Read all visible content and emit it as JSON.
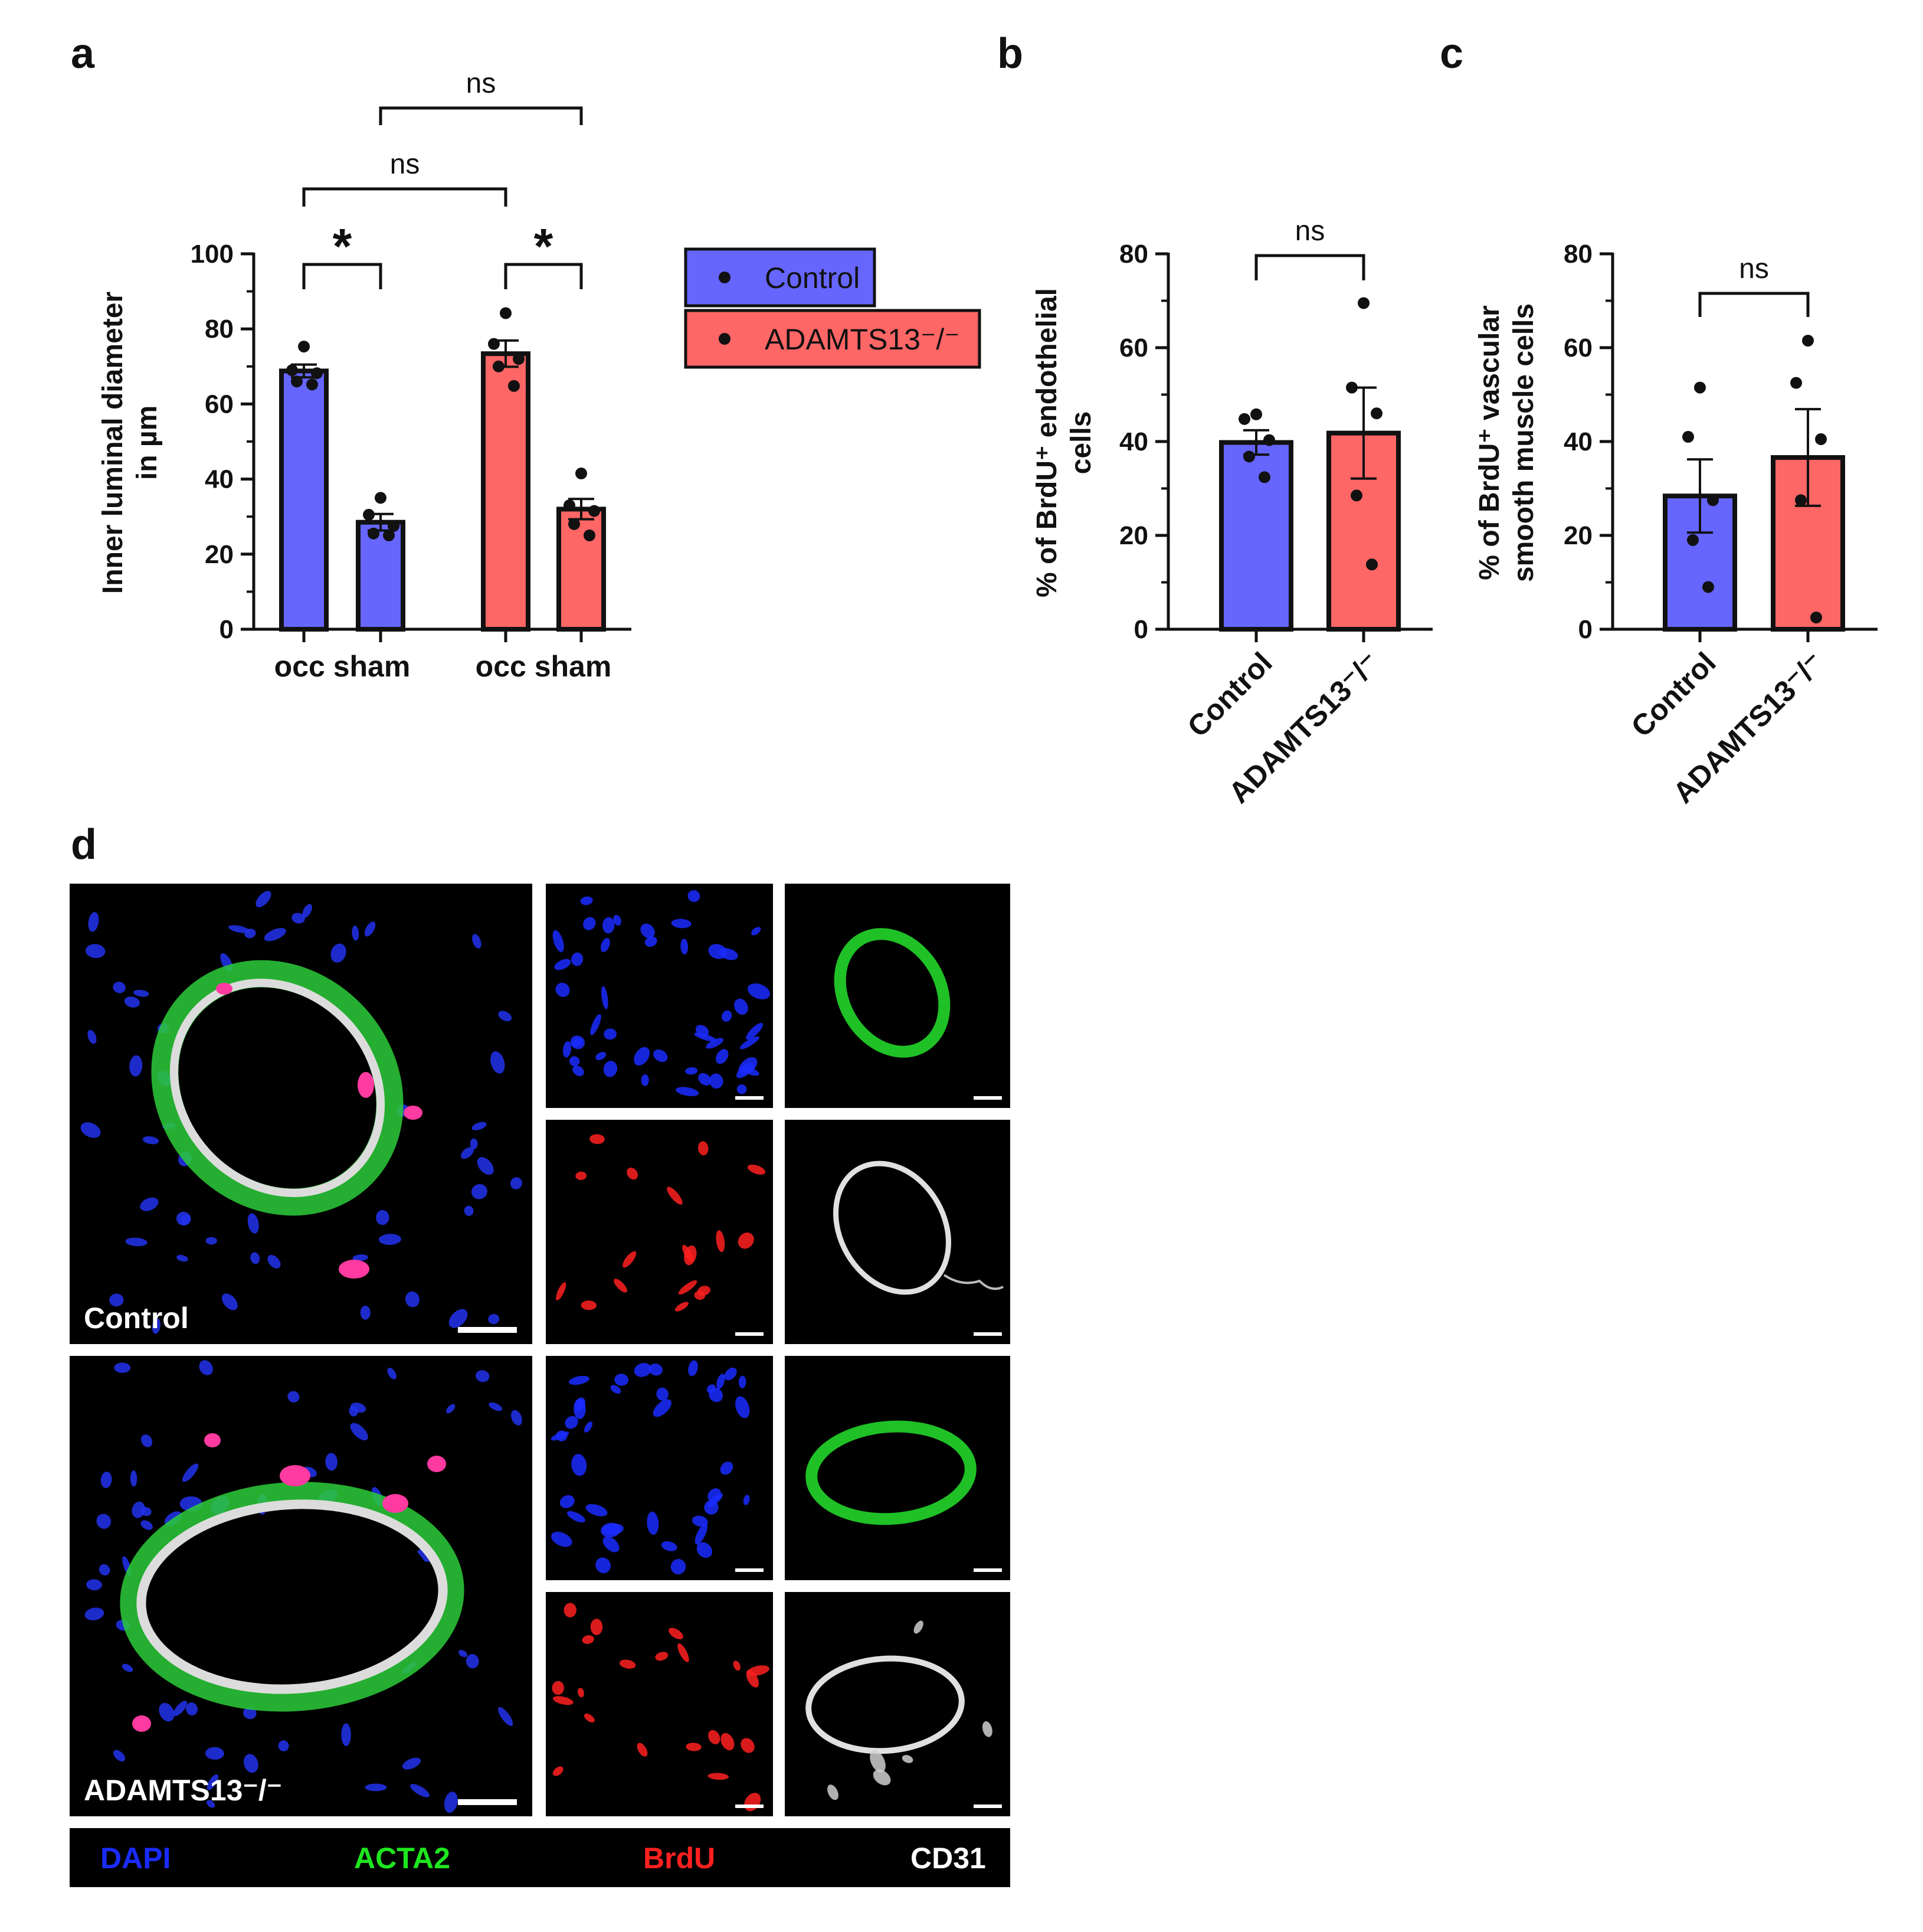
{
  "panel_labels": {
    "a": "a",
    "b": "b",
    "c": "c",
    "d": "d"
  },
  "colors": {
    "control": "#6666ff",
    "adamts": "#ff6666",
    "axis": "#111111"
  },
  "legend": {
    "entries": [
      {
        "label": "Control",
        "color": "#6666ff"
      },
      {
        "label": "ADAMTS13⁻/⁻",
        "color": "#ff6666"
      }
    ]
  },
  "chart_data": [
    {
      "id": "a",
      "type": "bar",
      "ylabel_lines": [
        "Inner luminal diameter",
        "in µm"
      ],
      "ylim": [
        0,
        100
      ],
      "yticks": [
        "0",
        "20",
        "40",
        "60",
        "80",
        "100"
      ],
      "group_labels": [
        "occ sham",
        "occ sham"
      ],
      "bars": [
        {
          "name": "Control occ",
          "color": "#6666ff",
          "value": 68.8,
          "sem": 1.7,
          "points": [
            75.3,
            69.0,
            68.2,
            66.0,
            65.2
          ]
        },
        {
          "name": "Control sham",
          "color": "#6666ff",
          "value": 28.5,
          "sem": 2.2,
          "points": [
            35.0,
            30.5,
            27.5,
            25.5,
            25.0
          ]
        },
        {
          "name": "ADAMTS13 occ",
          "color": "#ff6666",
          "value": 73.4,
          "sem": 3.5,
          "points": [
            84.2,
            76.0,
            72.0,
            70.0,
            64.8
          ]
        },
        {
          "name": "ADAMTS13 sham",
          "color": "#ff6666",
          "value": 32.0,
          "sem": 2.7,
          "points": [
            41.5,
            33.0,
            31.5,
            28.0,
            25.0
          ]
        }
      ],
      "comparisons": [
        {
          "from": 0,
          "to": 1,
          "label": "*"
        },
        {
          "from": 2,
          "to": 3,
          "label": "*"
        },
        {
          "from": 0,
          "to": 2,
          "label": "ns"
        },
        {
          "from": 1,
          "to": 3,
          "label": "ns"
        }
      ]
    },
    {
      "id": "b",
      "type": "bar",
      "ylabel_lines": [
        "% of BrdU⁺ endothelial",
        "cells"
      ],
      "ylim": [
        0,
        80
      ],
      "yticks": [
        "0",
        "20",
        "40",
        "60",
        "80"
      ],
      "categories": [
        "Control",
        "ADAMTS13⁻/⁻"
      ],
      "bars": [
        {
          "name": "Control",
          "color": "#6666ff",
          "value": 39.8,
          "sem": 2.6,
          "points": [
            45.8,
            44.8,
            40.3,
            36.8,
            32.4
          ]
        },
        {
          "name": "ADAMTS13⁻/⁻",
          "color": "#ff6666",
          "value": 41.8,
          "sem": 9.7,
          "points": [
            69.5,
            51.5,
            46.0,
            28.5,
            13.8
          ]
        }
      ],
      "comparisons": [
        {
          "from": 0,
          "to": 1,
          "label": "ns"
        }
      ]
    },
    {
      "id": "c",
      "type": "bar",
      "ylabel_lines": [
        "% of BrdU⁺ vascular",
        "smooth muscle cells"
      ],
      "ylim": [
        0,
        80
      ],
      "yticks": [
        "0",
        "20",
        "40",
        "60",
        "80"
      ],
      "categories": [
        "Control",
        "ADAMTS13⁻/⁻"
      ],
      "bars": [
        {
          "name": "Control",
          "color": "#6666ff",
          "value": 28.4,
          "sem": 7.8,
          "points": [
            51.5,
            41.0,
            27.5,
            19.0,
            9.0
          ]
        },
        {
          "name": "ADAMTS13⁻/⁻",
          "color": "#ff6666",
          "value": 36.6,
          "sem": 10.3,
          "points": [
            61.5,
            52.5,
            40.5,
            27.5,
            2.5
          ]
        }
      ],
      "comparisons": [
        {
          "from": 0,
          "to": 1,
          "label": "ns"
        }
      ]
    }
  ],
  "micrographs": {
    "row_labels": [
      "Control",
      "ADAMTS13⁻/⁻"
    ],
    "channels": [
      {
        "label": "DAPI",
        "color": "#1a2bff"
      },
      {
        "label": "ACTA2",
        "color": "#1ee61e"
      },
      {
        "label": "BrdU",
        "color": "#ff2020"
      },
      {
        "label": "CD31",
        "color": "#ffffff"
      }
    ]
  }
}
